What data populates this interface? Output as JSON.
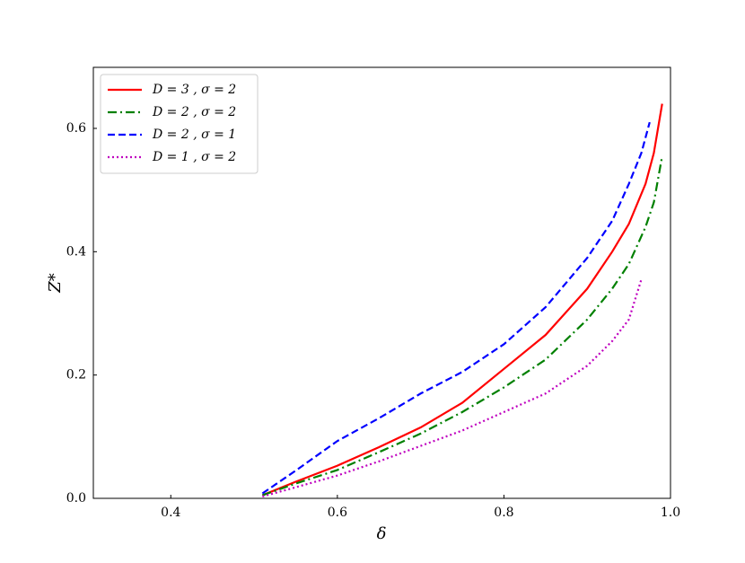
{
  "chart_data": {
    "type": "line",
    "xlabel": "δ",
    "ylabel": "Z*",
    "xlim": [
      0.307,
      1.0
    ],
    "ylim": [
      0,
      0.699
    ],
    "xticks": [
      0.4,
      0.6,
      0.8,
      {
        "value": 1,
        "label": "1.0"
      }
    ],
    "yticks": [
      {
        "value": 0,
        "label": "0.0"
      },
      0.2,
      0.4,
      0.6
    ],
    "legend": "upper left",
    "series": [
      {
        "name": "D = 3 , σ = 2",
        "color": "#ff0000",
        "style": "solid",
        "x": [
          0.51,
          0.55,
          0.6,
          0.65,
          0.7,
          0.75,
          0.8,
          0.85,
          0.9,
          0.93,
          0.95,
          0.97,
          0.98,
          0.99
        ],
        "values": [
          0.005,
          0.027,
          0.053,
          0.083,
          0.115,
          0.155,
          0.21,
          0.265,
          0.34,
          0.4,
          0.445,
          0.51,
          0.56,
          0.64
        ]
      },
      {
        "name": "D = 2 , σ = 2",
        "color": "#008000",
        "style": "dashdot",
        "x": [
          0.51,
          0.55,
          0.6,
          0.65,
          0.7,
          0.75,
          0.8,
          0.85,
          0.9,
          0.93,
          0.95,
          0.97,
          0.98,
          0.99
        ],
        "values": [
          0.005,
          0.024,
          0.046,
          0.075,
          0.105,
          0.14,
          0.18,
          0.225,
          0.29,
          0.34,
          0.38,
          0.44,
          0.48,
          0.555
        ]
      },
      {
        "name": "D = 2 , σ = 1",
        "color": "#0000ff",
        "style": "dashed",
        "x": [
          0.51,
          0.55,
          0.6,
          0.65,
          0.7,
          0.75,
          0.8,
          0.85,
          0.9,
          0.93,
          0.95,
          0.965,
          0.975
        ],
        "values": [
          0.008,
          0.045,
          0.093,
          0.13,
          0.17,
          0.205,
          0.25,
          0.31,
          0.39,
          0.45,
          0.51,
          0.56,
          0.61
        ]
      },
      {
        "name": "D = 1 , σ = 2",
        "color": "#bf00bf",
        "style": "dotted",
        "x": [
          0.51,
          0.55,
          0.6,
          0.65,
          0.7,
          0.75,
          0.8,
          0.85,
          0.9,
          0.93,
          0.95,
          0.965
        ],
        "values": [
          0.003,
          0.018,
          0.037,
          0.06,
          0.085,
          0.11,
          0.14,
          0.17,
          0.215,
          0.255,
          0.29,
          0.355
        ]
      }
    ]
  }
}
